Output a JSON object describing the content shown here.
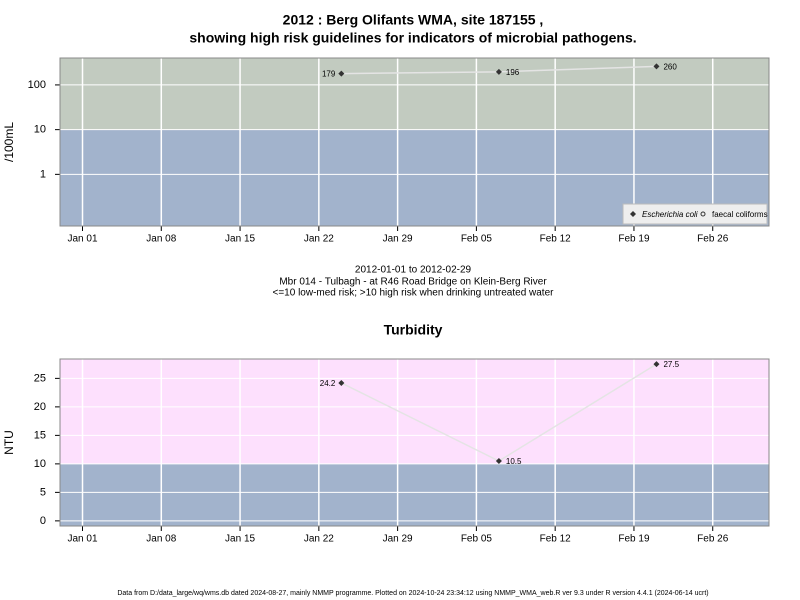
{
  "chart_data": [
    {
      "type": "line",
      "title": [
        "2012 : Berg Olifants WMA, site 187155 ,",
        "showing high risk guidelines for indicators of microbial pathogens."
      ],
      "subtitle": [
        "2012-01-01 to 2012-02-29",
        "Mbr 014 - Tulbagh - at R46 Road Bridge on Klein-Berg River",
        "<=10 low-med risk; >10 high risk when drinking untreated water"
      ],
      "y_label": "/100mL",
      "log_scale": true,
      "x": [
        "2012-01-24",
        "2012-02-07",
        "2012-02-21"
      ],
      "series": [
        {
          "name": "Escherichia coli",
          "color": "#333333",
          "line_color": "#e4e4e4",
          "marker": "diamond",
          "values": [
            179,
            196,
            260
          ]
        },
        {
          "name": "faecal coliforms",
          "color": "#333333",
          "line_color": "#e4e4e4",
          "marker": "circle",
          "values": [
            null,
            null,
            null
          ]
        }
      ],
      "threshold": 10,
      "below_color": "#a2b3cc",
      "above_color": "#c2cbc0",
      "xlim": [
        "2011-12-30",
        "2012-03-02"
      ],
      "xticks": [
        {
          "value": "2012-01-01",
          "label": "Jan 01"
        },
        {
          "value": "2012-01-08",
          "label": "Jan 08"
        },
        {
          "value": "2012-01-15",
          "label": "Jan 15"
        },
        {
          "value": "2012-01-22",
          "label": "Jan 22"
        },
        {
          "value": "2012-01-29",
          "label": "Jan 29"
        },
        {
          "value": "2012-02-05",
          "label": "Feb 05"
        },
        {
          "value": "2012-02-12",
          "label": "Feb 12"
        },
        {
          "value": "2012-02-19",
          "label": "Feb 19"
        },
        {
          "value": "2012-02-26",
          "label": "Feb 26"
        }
      ],
      "ylim": [
        0.07,
        400
      ],
      "yticks": [
        1,
        10,
        100
      ],
      "grid": true,
      "legend": "bottom-right"
    },
    {
      "type": "line",
      "title": [
        "Turbidity"
      ],
      "y_label": "NTU",
      "log_scale": false,
      "x": [
        "2012-01-24",
        "2012-02-07",
        "2012-02-21"
      ],
      "series": [
        {
          "color": "#333333",
          "line_color": "#e4e4e4",
          "marker": "diamond",
          "values": [
            24.2,
            10.5,
            27.5
          ]
        }
      ],
      "threshold": 10,
      "below_color": "#a2b3cc",
      "above_color": "#fde0fd",
      "xlim": [
        "2011-12-30",
        "2012-03-02"
      ],
      "xticks": [
        {
          "value": "2012-01-01",
          "label": "Jan 01"
        },
        {
          "value": "2012-01-08",
          "label": "Jan 08"
        },
        {
          "value": "2012-01-15",
          "label": "Jan 15"
        },
        {
          "value": "2012-01-22",
          "label": "Jan 22"
        },
        {
          "value": "2012-01-29",
          "label": "Jan 29"
        },
        {
          "value": "2012-02-05",
          "label": "Feb 05"
        },
        {
          "value": "2012-02-12",
          "label": "Feb 12"
        },
        {
          "value": "2012-02-19",
          "label": "Feb 19"
        },
        {
          "value": "2012-02-26",
          "label": "Feb 26"
        }
      ],
      "ylim": [
        -0.9,
        28.4
      ],
      "yticks": [
        0,
        5,
        10,
        15,
        20,
        25
      ],
      "grid": true
    }
  ],
  "footer": "Data from D:/data_large/wq/wms.db dated 2024-08-27, mainly NMMP programme. Plotted on 2024-10-24 23:34:12 using NMMP_WMA_web.R ver 9.3 under R version 4.4.1 (2024-06-14 ucrt)"
}
